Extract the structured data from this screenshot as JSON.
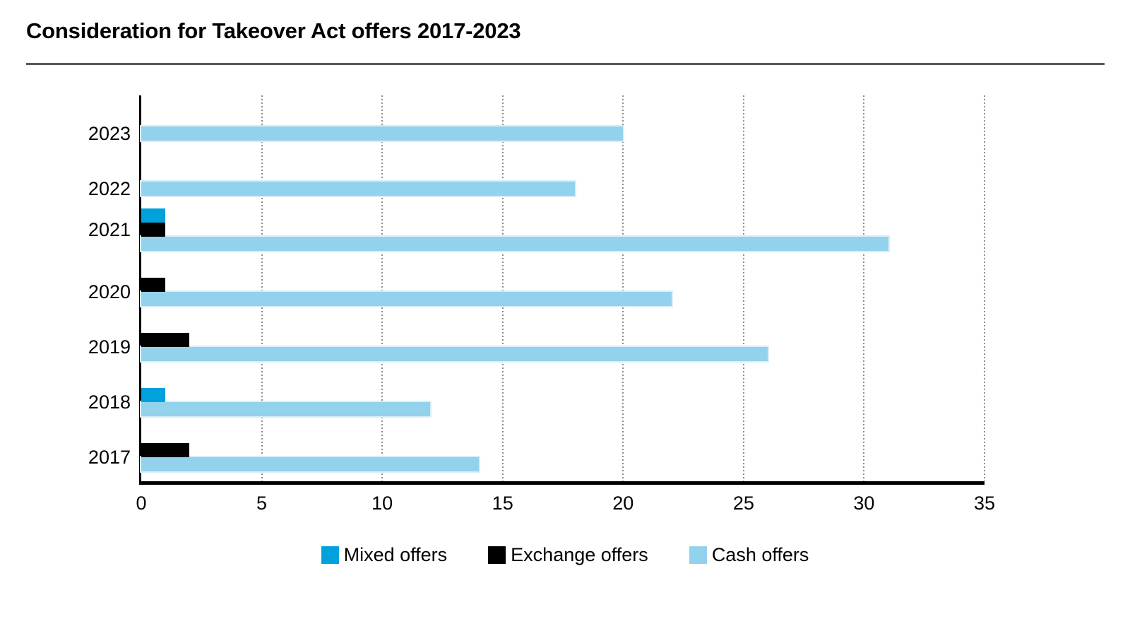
{
  "page": {
    "title": "Consideration for Takeover Act offers 2017-2023"
  },
  "chart_data": {
    "type": "bar",
    "orientation": "horizontal",
    "title": "Consideration for Takeover Act offers 2017-2023",
    "categories": [
      "2023",
      "2022",
      "2021",
      "2020",
      "2019",
      "2018",
      "2017"
    ],
    "series": [
      {
        "name": "Mixed offers",
        "color": "#00a1dc",
        "values": [
          0,
          0,
          1,
          0,
          0,
          1,
          0
        ]
      },
      {
        "name": "Exchange offers",
        "color": "#000000",
        "values": [
          0,
          0,
          1,
          1,
          2,
          0,
          2
        ]
      },
      {
        "name": "Cash offers",
        "color": "#92d2ec",
        "values": [
          20,
          18,
          31,
          22,
          26,
          12,
          14
        ]
      }
    ],
    "xlabel": "",
    "ylabel": "",
    "xlim": [
      0,
      35
    ],
    "xticks": [
      0,
      5,
      10,
      15,
      20,
      25,
      30,
      35
    ],
    "grid": "vertical-dotted",
    "legend_position": "bottom",
    "axis_color": "#000000",
    "gridline_color": "#8e8e8e"
  }
}
